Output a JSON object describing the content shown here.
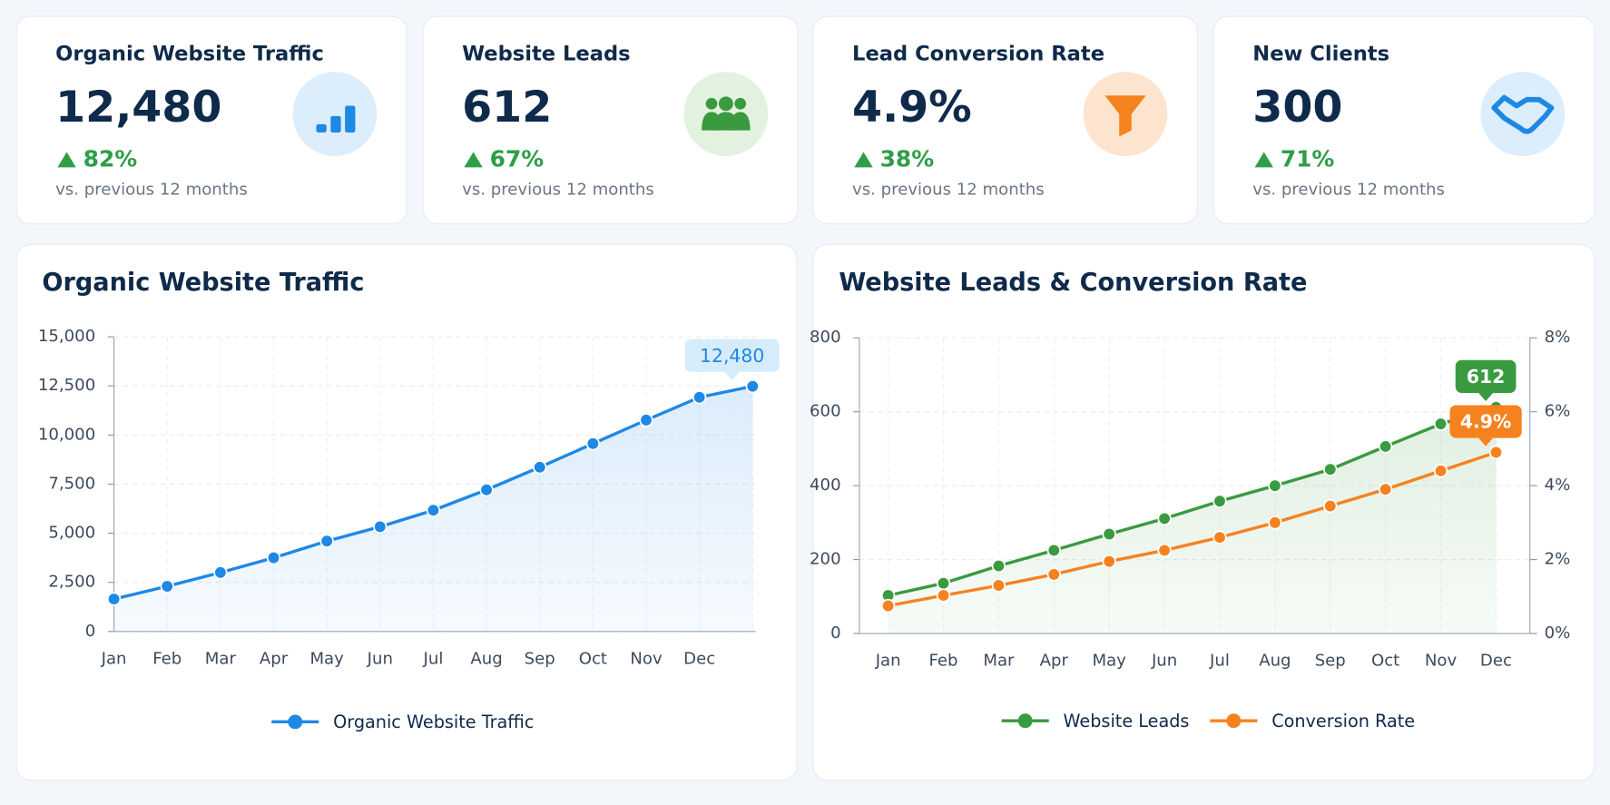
{
  "kpis": [
    {
      "title": "Organic Website Traffic",
      "value": "12,480",
      "change": "82%",
      "note": "vs. previous 12 months"
    },
    {
      "title": "Website Leads",
      "value": "612",
      "change": "67%",
      "note": "vs. previous 12 months"
    },
    {
      "title": "Lead Conversion Rate",
      "value": "4.9%",
      "change": "38%",
      "note": "vs. previous 12 months"
    },
    {
      "title": "New Clients",
      "value": "300",
      "change": "71%",
      "note": "vs. previous 12 months"
    }
  ],
  "chart_data": [
    {
      "type": "line",
      "title": "Organic Website Traffic",
      "categories": [
        "Jan",
        "Feb",
        "Mar",
        "Apr",
        "May",
        "Jun",
        "Jul",
        "Aug",
        "Sep",
        "Oct",
        "Nov",
        "Dec",
        null
      ],
      "series": [
        {
          "name": "Organic Website Traffic",
          "color": "#1e88e5",
          "values": [
            1650,
            2300,
            3000,
            3750,
            4600,
            5330,
            6170,
            7210,
            8360,
            9560,
            10760,
            11920,
            12480
          ],
          "value_labels": [
            null,
            null,
            null,
            null,
            null,
            null,
            null,
            null,
            null,
            null,
            null,
            null,
            "12,480"
          ]
        }
      ],
      "ylim": [
        0,
        15000
      ],
      "yticks": [
        0,
        {
          "value": 2500,
          "label": "2,500"
        },
        {
          "value": 5000,
          "label": "5,000"
        },
        {
          "value": 7500,
          "label": "7,500"
        },
        {
          "value": 10000,
          "label": "10,000"
        },
        {
          "value": 12500,
          "label": "12,500"
        },
        {
          "value": 15000,
          "label": "15,000"
        }
      ],
      "grid": true,
      "legend": "bottom"
    },
    {
      "type": "line",
      "title": "Website Leads & Conversion Rate",
      "categories": [
        "Jan",
        "Feb",
        "Mar",
        "Apr",
        "May",
        "Jun",
        "Jul",
        "Aug",
        "Sep",
        "Oct",
        "Nov",
        "Dec"
      ],
      "series": [
        {
          "name": "Website Leads",
          "color": "#3a9a3f",
          "values": [
            103,
            136,
            183,
            225,
            269,
            311,
            358,
            400,
            444,
            506,
            567,
            612
          ],
          "value_labels": [
            null,
            null,
            null,
            null,
            null,
            null,
            null,
            null,
            null,
            null,
            null,
            "612"
          ]
        },
        {
          "name": "Conversion Rate",
          "color": "#f5821f",
          "axis": "y2",
          "values": [
            0.75,
            1.03,
            1.3,
            1.6,
            1.95,
            2.25,
            2.6,
            3.0,
            3.45,
            3.9,
            4.4,
            4.9
          ],
          "value_labels": [
            null,
            null,
            null,
            null,
            null,
            null,
            null,
            null,
            null,
            null,
            null,
            "4.9%"
          ]
        }
      ],
      "ylim": [
        0,
        800
      ],
      "yticks": [
        0,
        200,
        400,
        600,
        800
      ],
      "y2lim": [
        0,
        8
      ],
      "y2ticks": [
        {
          "value": 0,
          "label": "0%"
        },
        {
          "value": 2,
          "label": "2%"
        },
        {
          "value": 4,
          "label": "4%"
        },
        {
          "value": 6,
          "label": "6%"
        },
        {
          "value": 8,
          "label": "8%"
        }
      ],
      "grid": true,
      "legend": "bottom"
    }
  ]
}
